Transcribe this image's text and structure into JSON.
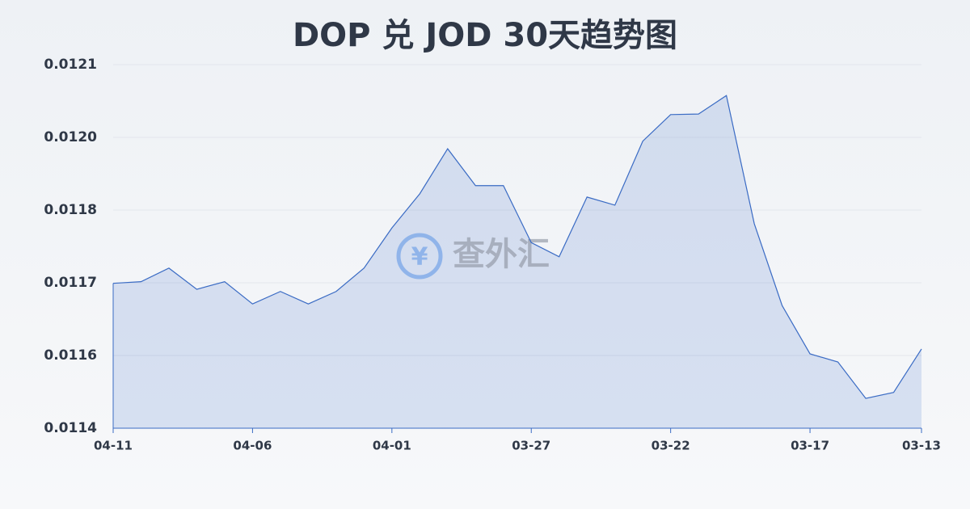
{
  "chart_data": {
    "type": "line",
    "title": "DOP 兑 JOD 30天趋势图",
    "watermark": "查外汇",
    "categories": [
      "04-11",
      null,
      null,
      null,
      null,
      "04-06",
      null,
      null,
      null,
      null,
      "04-01",
      null,
      null,
      null,
      null,
      "03-27",
      null,
      null,
      null,
      null,
      "03-22",
      null,
      null,
      null,
      null,
      "03-17",
      null,
      null,
      null,
      "03-13"
    ],
    "series": [
      {
        "name": "DOP/JOD",
        "color": "#3a6bc4",
        "values": [
          0.011702,
          0.011705,
          0.01173,
          0.011691,
          0.011705,
          0.011664,
          0.011687,
          0.011664,
          0.011687,
          0.01173,
          0.011804,
          0.011867,
          0.01195,
          0.011882,
          0.011882,
          0.011777,
          0.011751,
          0.011861,
          0.011846,
          0.011964,
          0.012013,
          0.012014,
          0.012048,
          0.011812,
          0.011661,
          0.011572,
          0.011557,
          0.01149,
          0.011501,
          0.011581
        ]
      }
    ],
    "ylim": [
      0.011435,
      0.012105
    ],
    "yticks": [
      {
        "value": 0.011435,
        "label": "0.0114"
      },
      {
        "value": 0.011569,
        "label": "0.0116"
      },
      {
        "value": 0.011703,
        "label": "0.0117"
      },
      {
        "value": 0.011837,
        "label": "0.0118"
      },
      {
        "value": 0.011971,
        "label": "0.0120"
      },
      {
        "value": 0.012105,
        "label": "0.0121"
      }
    ],
    "grid": true
  }
}
